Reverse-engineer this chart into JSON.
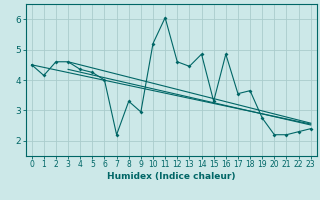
{
  "xlabel": "Humidex (Indice chaleur)",
  "background_color": "#cce8e8",
  "grid_color": "#aacccc",
  "line_color": "#006666",
  "xlim": [
    -0.5,
    23.5
  ],
  "ylim": [
    1.5,
    6.5
  ],
  "xticks": [
    0,
    1,
    2,
    3,
    4,
    5,
    6,
    7,
    8,
    9,
    10,
    11,
    12,
    13,
    14,
    15,
    16,
    17,
    18,
    19,
    20,
    21,
    22,
    23
  ],
  "yticks": [
    2,
    3,
    4,
    5,
    6
  ],
  "curve_x": [
    0,
    1,
    2,
    3,
    4,
    5,
    6,
    7,
    8,
    9,
    10,
    11,
    12,
    13,
    14,
    15,
    16,
    17,
    18,
    19,
    20,
    21,
    22,
    23
  ],
  "curve_y": [
    4.5,
    4.15,
    4.6,
    4.6,
    4.35,
    4.25,
    4.0,
    2.2,
    3.3,
    2.95,
    5.2,
    6.05,
    4.6,
    4.45,
    4.85,
    3.3,
    4.85,
    3.55,
    3.65,
    2.75,
    2.2,
    2.2,
    2.3,
    2.4
  ],
  "line1_x": [
    0,
    23
  ],
  "line1_y": [
    4.5,
    2.55
  ],
  "line2_x": [
    3,
    23
  ],
  "line2_y": [
    4.6,
    2.58
  ],
  "line3_x": [
    3,
    23
  ],
  "line3_y": [
    4.35,
    2.52
  ]
}
